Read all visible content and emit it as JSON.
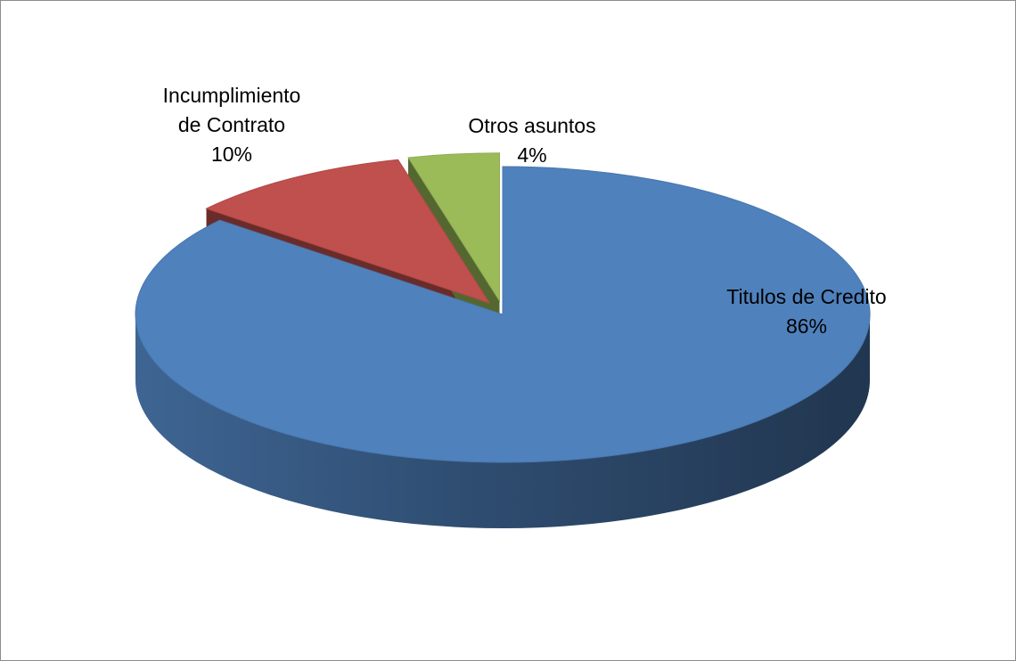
{
  "chart_data": {
    "type": "pie",
    "style": "3d-exploded",
    "title": "",
    "legend": "none",
    "slices": [
      {
        "label_lines": [
          "Titulos de Credito"
        ],
        "value": 86,
        "value_label": "86%",
        "color": "#4f81bd"
      },
      {
        "label_lines": [
          "Incumplimiento",
          "de Contrato"
        ],
        "value": 10,
        "value_label": "10%",
        "color": "#c0504d"
      },
      {
        "label_lines": [
          "Otros asuntos"
        ],
        "value": 4,
        "value_label": "4%",
        "color": "#9bbb59"
      }
    ]
  }
}
